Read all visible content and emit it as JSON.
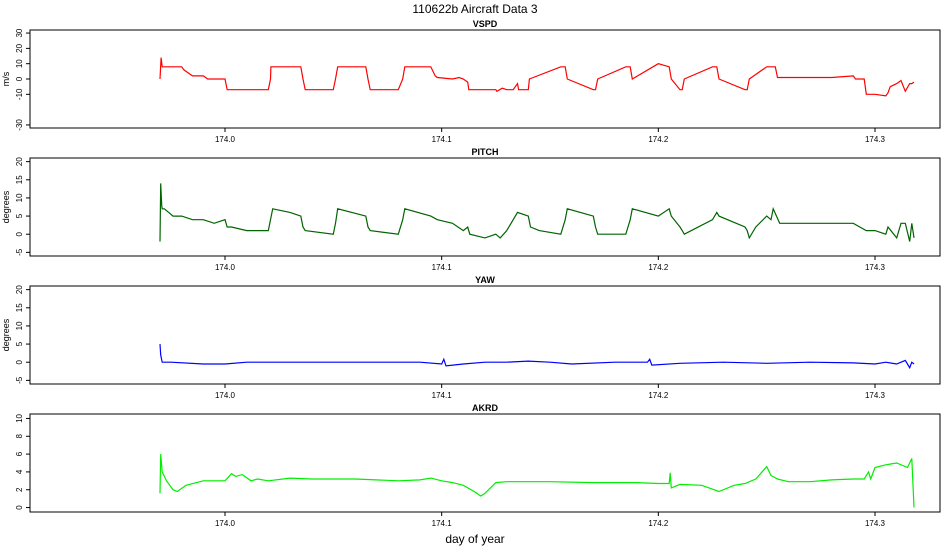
{
  "title": "110622b   Aircraft Data 3",
  "xlabel": "day of year",
  "chart_data": [
    {
      "type": "line",
      "title": "VSPD",
      "ylabel": "m/s",
      "color": "#ff0000",
      "xlim": [
        173.91,
        174.33
      ],
      "ylim": [
        -32,
        32
      ],
      "xticks": [
        174.0,
        174.1,
        174.2,
        174.3
      ],
      "xtick_labels": [
        "174.0",
        "174.1",
        "174.2",
        "174.3"
      ],
      "yticks": [
        -30,
        -10,
        0,
        10,
        20,
        30
      ],
      "ytick_labels": [
        "-30",
        "-10",
        "0",
        "10",
        "20",
        "30"
      ],
      "series": [
        {
          "x": [
            173.97,
            173.9705,
            173.971,
            173.972,
            173.973,
            173.98,
            173.981,
            173.983,
            173.985,
            173.99,
            173.992,
            173.993,
            174.0,
            174.001,
            174.02,
            174.021,
            174.0212,
            174.022,
            174.035,
            174.036,
            174.037,
            174.05,
            174.051,
            174.052,
            174.065,
            174.066,
            174.067,
            174.08,
            174.082,
            174.083,
            174.095,
            174.097,
            174.098,
            174.105,
            174.108,
            174.11,
            174.112,
            174.1125,
            174.125,
            174.1255,
            174.128,
            174.13,
            174.133,
            174.135,
            174.1355,
            174.14,
            174.1405,
            174.155,
            174.157,
            174.158,
            174.17,
            174.171,
            174.172,
            174.185,
            174.187,
            174.188,
            174.2,
            174.205,
            174.206,
            174.21,
            174.211,
            174.212,
            174.225,
            174.227,
            174.228,
            174.24,
            174.241,
            174.242,
            174.25,
            174.254,
            174.255,
            174.256,
            174.27,
            174.28,
            174.29,
            174.291,
            174.295,
            174.296,
            174.3,
            174.305,
            174.306,
            174.307,
            174.31,
            174.312,
            174.314,
            174.316,
            174.317,
            174.318
          ],
          "y": [
            0,
            14,
            8,
            8,
            8,
            8,
            6,
            4,
            2,
            2,
            0,
            0,
            0,
            -7,
            -7,
            0,
            8,
            8,
            8,
            0,
            -7,
            -7,
            0,
            8,
            8,
            0,
            -7,
            -7,
            0,
            8,
            8,
            2,
            1,
            0,
            1,
            0,
            -2,
            -7,
            -7,
            -8,
            -6,
            -7,
            -7,
            -3,
            -7,
            -7,
            0,
            8,
            8,
            0,
            -7,
            -7,
            0,
            8,
            8,
            0,
            10,
            8,
            0,
            -7,
            -7,
            0,
            8,
            8,
            0,
            -7,
            -7,
            0,
            8,
            8,
            1,
            1,
            1,
            1,
            2,
            0,
            0,
            -10,
            -10,
            -11,
            -9,
            -5,
            -3,
            -1,
            -8,
            -3,
            -3,
            -2
          ]
        }
      ]
    },
    {
      "type": "line",
      "title": "PITCH",
      "ylabel": "degrees",
      "color": "#006400",
      "xlim": [
        173.91,
        174.33
      ],
      "ylim": [
        -6,
        21
      ],
      "xticks": [
        174.0,
        174.1,
        174.2,
        174.3
      ],
      "xtick_labels": [
        "174.0",
        "174.1",
        "174.2",
        "174.3"
      ],
      "yticks": [
        -5,
        0,
        5,
        10,
        15,
        20
      ],
      "ytick_labels": [
        "-5",
        "0",
        "5",
        "10",
        "15",
        "20"
      ],
      "series": [
        {
          "x": [
            173.97,
            173.9703,
            173.9708,
            173.971,
            173.972,
            173.974,
            173.976,
            173.98,
            173.985,
            173.99,
            173.995,
            174.0,
            174.001,
            174.003,
            174.01,
            174.02,
            174.021,
            174.022,
            174.03,
            174.035,
            174.036,
            174.037,
            174.05,
            174.051,
            174.052,
            174.065,
            174.066,
            174.067,
            174.08,
            174.082,
            174.083,
            174.095,
            174.098,
            174.105,
            174.11,
            174.112,
            174.113,
            174.12,
            174.125,
            174.127,
            174.13,
            174.133,
            174.135,
            174.14,
            174.141,
            174.145,
            174.155,
            174.157,
            174.158,
            174.17,
            174.171,
            174.172,
            174.185,
            174.187,
            174.188,
            174.2,
            174.205,
            174.206,
            174.21,
            174.211,
            174.212,
            174.225,
            174.227,
            174.228,
            174.24,
            174.241,
            174.242,
            174.245,
            174.25,
            174.252,
            174.253,
            174.256,
            174.27,
            174.28,
            174.29,
            174.293,
            174.296,
            174.3,
            174.305,
            174.306,
            174.31,
            174.312,
            174.314,
            174.316,
            174.317,
            174.318
          ],
          "y": [
            -2,
            14,
            8,
            7,
            7,
            6,
            5,
            5,
            4,
            4,
            3,
            4,
            2,
            2,
            1,
            1,
            4,
            7,
            6,
            5,
            2,
            1,
            0,
            3,
            7,
            5,
            2,
            1,
            0,
            4,
            7,
            5,
            4,
            3,
            1,
            2,
            0,
            -1,
            0,
            -1,
            1,
            4,
            6,
            5,
            2,
            1,
            0,
            4,
            7,
            5,
            2,
            0,
            0,
            4,
            7,
            5,
            7,
            5,
            2,
            1,
            0,
            4,
            6,
            5,
            2,
            1,
            -1,
            2,
            5,
            4,
            7,
            3,
            3,
            3,
            3,
            2,
            1,
            1,
            0,
            2,
            -1,
            3,
            3,
            -2,
            3,
            -1
          ]
        }
      ]
    },
    {
      "type": "line",
      "title": "YAW",
      "ylabel": "degrees",
      "color": "#0000ff",
      "xlim": [
        173.91,
        174.33
      ],
      "ylim": [
        -6,
        21
      ],
      "xticks": [
        174.0,
        174.1,
        174.2,
        174.3
      ],
      "xtick_labels": [
        "174.0",
        "174.1",
        "174.2",
        "174.3"
      ],
      "yticks": [
        -5,
        0,
        5,
        10,
        15,
        20
      ],
      "ytick_labels": [
        "-5",
        "0",
        "5",
        "10",
        "15",
        "20"
      ],
      "series": [
        {
          "x": [
            173.97,
            173.9703,
            173.971,
            173.975,
            173.99,
            174.0,
            174.01,
            174.03,
            174.05,
            174.07,
            174.09,
            174.1,
            174.101,
            174.102,
            174.11,
            174.12,
            174.13,
            174.14,
            174.15,
            174.16,
            174.18,
            174.195,
            174.196,
            174.197,
            174.21,
            174.23,
            174.25,
            174.27,
            174.29,
            174.3,
            174.305,
            174.31,
            174.314,
            174.316,
            174.317,
            174.318
          ],
          "y": [
            5,
            2,
            0,
            0,
            -0.5,
            -0.5,
            0,
            0,
            0,
            0,
            0,
            -0.5,
            0.8,
            -1,
            -0.5,
            0,
            0,
            0.3,
            0,
            -0.5,
            0,
            0,
            0.8,
            -0.8,
            -0.3,
            0,
            -0.3,
            0,
            -0.2,
            -0.5,
            0,
            -0.5,
            0.5,
            -1.5,
            0,
            -0.5
          ]
        }
      ]
    },
    {
      "type": "line",
      "title": "AKRD",
      "ylabel": "",
      "color": "#00ee00",
      "xlim": [
        173.91,
        174.33
      ],
      "ylim": [
        -0.5,
        10.5
      ],
      "xticks": [
        174.0,
        174.1,
        174.2,
        174.3
      ],
      "xtick_labels": [
        "174.0",
        "174.1",
        "174.2",
        "174.3"
      ],
      "yticks": [
        0,
        2,
        4,
        6,
        8,
        10
      ],
      "ytick_labels": [
        "0",
        "2",
        "4",
        "6",
        "8",
        "10"
      ],
      "series": [
        {
          "x": [
            173.97,
            173.9703,
            173.971,
            173.973,
            173.976,
            173.978,
            173.982,
            173.99,
            173.995,
            174.0,
            174.003,
            174.005,
            174.008,
            174.012,
            174.015,
            174.02,
            174.03,
            174.04,
            174.06,
            174.08,
            174.09,
            174.095,
            174.1,
            174.105,
            174.11,
            174.115,
            174.118,
            174.12,
            174.125,
            174.13,
            174.15,
            174.17,
            174.19,
            174.2,
            174.205,
            174.2055,
            174.206,
            174.21,
            174.22,
            174.228,
            174.235,
            174.24,
            174.245,
            174.25,
            174.252,
            174.255,
            174.26,
            174.27,
            174.28,
            174.29,
            174.295,
            174.297,
            174.298,
            174.3,
            174.305,
            174.31,
            174.315,
            174.317,
            174.318
          ],
          "y": [
            1.6,
            6,
            4,
            3,
            2,
            1.8,
            2.5,
            3,
            3,
            3,
            3.8,
            3.5,
            3.7,
            3,
            3.2,
            3,
            3.3,
            3.2,
            3.2,
            3,
            3.1,
            3.3,
            3,
            2.8,
            2.5,
            1.8,
            1.3,
            1.6,
            2.8,
            2.9,
            2.9,
            2.8,
            2.8,
            2.7,
            2.7,
            3.9,
            2.2,
            2.6,
            2.5,
            1.8,
            2.5,
            2.7,
            3.2,
            4.6,
            3.6,
            3.2,
            2.9,
            2.9,
            3.1,
            3.2,
            3.2,
            4,
            3.2,
            4.5,
            4.8,
            5,
            4.5,
            5.5,
            0
          ]
        }
      ]
    }
  ]
}
